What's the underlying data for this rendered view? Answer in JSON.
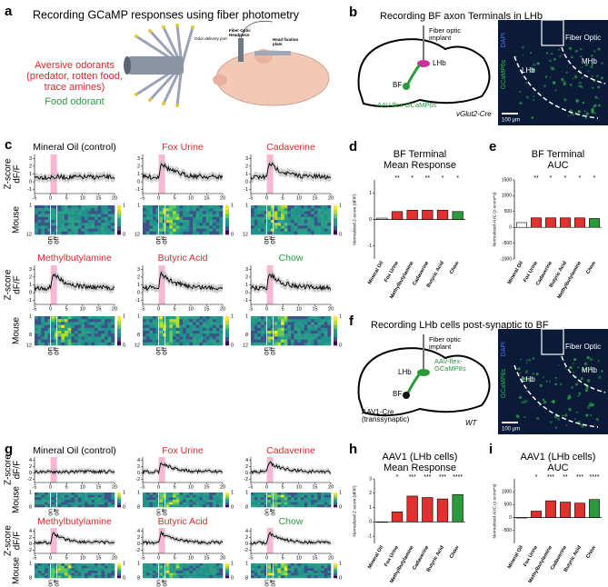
{
  "a": {
    "letter": "a",
    "title": "Recording GCaMP responses using fiber photometry",
    "aversive": [
      "Aversive odorants",
      "(predator, rotten food,",
      "trace amines)"
    ],
    "food": "Food odorant",
    "port": "Odor delivery port",
    "headpiece": [
      "Fiber Optic",
      "Headpiece"
    ],
    "plate": [
      "Head fixation",
      "plate"
    ]
  },
  "b": {
    "letter": "b",
    "title": "Recording BF axon Terminals in LHb",
    "implant": [
      "Fiber optic",
      "implant"
    ],
    "lhb": "LHb",
    "bf": "BF",
    "virus": [
      "AAV-flex-GCaMP6s"
    ],
    "mouse": [
      "vGlut2-Cre"
    ],
    "image": {
      "fiber": "Fiber Optic",
      "lhb": "LHb",
      "mhb": "MHb",
      "dapi": "DAPI",
      "gcamp": "GCaMP6s",
      "scale": "100 µm"
    }
  },
  "f": {
    "letter": "f",
    "title": "Recording LHb cells post-synaptic to BF",
    "implant": [
      "Fiber optic",
      "implant"
    ],
    "lhb": "LHb",
    "bf": "BF",
    "virus": [
      "AAV-flex-",
      "GCaMP8s"
    ],
    "mouse": [
      "AAV1-Cre",
      "(transsynaptic)",
      "WT"
    ],
    "image": {
      "fiber": "Fiber Optic",
      "lhb": "LHb",
      "mhb": "MHb",
      "dapi": "DAPI",
      "gcamp": "GCaMP8s",
      "scale": "100 µm"
    }
  },
  "c": {
    "letter": "c",
    "trace_ylabel": [
      "Z-score",
      "dF/F"
    ],
    "heat_ylabel": "Mouse",
    "on": "on",
    "off": "off",
    "xlim": [
      -5,
      20
    ],
    "xticks": [
      -5,
      0,
      5,
      10,
      15,
      20
    ],
    "odor_window": [
      0,
      2
    ],
    "rows": [
      {
        "titles": [
          {
            "text": "Mineral Oil (control)",
            "color": "#000000"
          },
          {
            "text": "Fox Urine",
            "color": "#d42a2a"
          },
          {
            "text": "Cadaverine",
            "color": "#d42a2a"
          }
        ],
        "ylim": [
          -1.5,
          3.5
        ],
        "yticks": [
          3,
          2,
          1,
          0,
          -1
        ],
        "heat_ylim": [
          1,
          12
        ],
        "heat_yticks": [
          1,
          12
        ],
        "cbar_lim": [
          0,
          1
        ],
        "cbar_ticks": [
          1,
          0
        ]
      },
      {
        "titles": [
          {
            "text": "Methylbutylamine",
            "color": "#d42a2a"
          },
          {
            "text": "Butyric Acid",
            "color": "#d42a2a"
          },
          {
            "text": "Chow",
            "color": "#2a9a3a"
          }
        ],
        "ylim": [
          -1.5,
          3.5
        ],
        "yticks": [
          3,
          2,
          1,
          0,
          -1
        ],
        "heat_ylim": [
          1,
          12
        ],
        "heat_yticks": [
          1,
          8,
          12
        ],
        "cbar_lim": [
          0,
          1
        ],
        "cbar_ticks": [
          1,
          0
        ]
      }
    ]
  },
  "g": {
    "letter": "g",
    "trace_ylabel": [
      "Z-score",
      "dF/F"
    ],
    "heat_ylabel": "Mouse",
    "on": "on",
    "off": "off",
    "xlim": [
      -5,
      20
    ],
    "xticks": [
      -5,
      0,
      5,
      10,
      15,
      20
    ],
    "odor_window": [
      0,
      2
    ],
    "rows": [
      {
        "titles": [
          {
            "text": "Mineral Oil (control)",
            "color": "#000000"
          },
          {
            "text": "Fox Urine",
            "color": "#d42a2a"
          },
          {
            "text": "Cadaverine",
            "color": "#d42a2a"
          }
        ],
        "ylim": [
          -3,
          5
        ],
        "yticks": [
          4,
          2,
          0,
          -2
        ],
        "heat_ylim": [
          1,
          8
        ],
        "heat_yticks": [
          1,
          8
        ],
        "cbar_lim": [
          0,
          1
        ],
        "cbar_ticks": [
          1,
          0
        ]
      },
      {
        "titles": [
          {
            "text": "Methylbutylamine",
            "color": "#d42a2a"
          },
          {
            "text": "Butyric Acid",
            "color": "#d42a2a"
          },
          {
            "text": "Chow",
            "color": "#2a9a3a"
          }
        ],
        "ylim": [
          -3,
          5
        ],
        "yticks": [
          4,
          2,
          0,
          -2
        ],
        "heat_ylim": [
          1,
          8
        ],
        "heat_yticks": [
          1,
          8
        ],
        "cbar_lim": [
          0,
          1
        ],
        "cbar_ticks": [
          1,
          0
        ]
      }
    ]
  },
  "chart_data": [
    {
      "type": "bar",
      "letter": "d",
      "title": [
        "BF Terminal",
        "Mean Response"
      ],
      "ylabel": "Normalized Z-score (dF/F)",
      "categories": [
        "Mineral Oil",
        "Fox Urine",
        "Methylbutylamine",
        "Cadaverine",
        "Butyric Acid",
        "Chow"
      ],
      "values": [
        0.05,
        0.3,
        0.35,
        0.35,
        0.35,
        0.3
      ],
      "colors": [
        "#ffffff",
        "#e03030",
        "#e03030",
        "#e03030",
        "#e03030",
        "#2a9a3a"
      ],
      "stars": [
        null,
        "**",
        "*",
        "**",
        "*",
        "*"
      ],
      "ylim": [
        -1.5,
        1.5
      ],
      "yticks": [
        -1,
        0,
        1
      ]
    },
    {
      "type": "bar",
      "letter": "e",
      "title": [
        "BF Terminal",
        "AUC"
      ],
      "ylabel": "Normalized AUC (z-score*s)",
      "categories": [
        "Mineral Oil",
        "Fox Urine",
        "Cadaverine",
        "Butyric Acid",
        "Methylbutylamine",
        "Chow"
      ],
      "values": [
        150,
        300,
        300,
        300,
        300,
        280
      ],
      "colors": [
        "#ffffff",
        "#e03030",
        "#e03030",
        "#e03030",
        "#e03030",
        "#2a9a3a"
      ],
      "stars": [
        null,
        "**",
        "*",
        "*",
        "*",
        "*"
      ],
      "ylim": [
        -1000,
        1500
      ],
      "yticks": [
        -1000,
        -500,
        0,
        500,
        1000,
        1500
      ]
    },
    {
      "type": "bar",
      "letter": "h",
      "title": [
        "AAV1 (LHb cells)",
        "Mean Response"
      ],
      "ylabel": "Normalized Z-score (dF/F)",
      "categories": [
        "Mineral Oil",
        "Fox Urine",
        "Methylbutylamine",
        "Cadaverine",
        "Butyric Acid",
        "Chow"
      ],
      "values": [
        0,
        0.7,
        1.8,
        1.7,
        1.6,
        1.9
      ],
      "colors": [
        "#ffffff",
        "#e03030",
        "#e03030",
        "#e03030",
        "#e03030",
        "#2a9a3a"
      ],
      "stars": [
        null,
        "*",
        "***",
        "***",
        "***",
        "****"
      ],
      "ylim": [
        -1.5,
        3
      ],
      "yticks": [
        -1,
        0,
        1,
        2,
        3
      ]
    },
    {
      "type": "bar",
      "letter": "i",
      "title": [
        "AAV1 (LHb cells)",
        "AUC"
      ],
      "ylabel": "Normalized AUC (z-score*s)",
      "categories": [
        "Mineral Oil",
        "Fox Urine",
        "Methylbutylamine",
        "Cadaverine",
        "Butyric Acid",
        "Chow"
      ],
      "values": [
        0,
        250,
        650,
        600,
        560,
        700
      ],
      "colors": [
        "#ffffff",
        "#e03030",
        "#e03030",
        "#e03030",
        "#e03030",
        "#2a9a3a"
      ],
      "stars": [
        null,
        "*",
        "***",
        "**",
        "***",
        "****"
      ],
      "ylim": [
        -1000,
        1500
      ],
      "yticks": [
        -500,
        0,
        500,
        1000
      ]
    }
  ]
}
